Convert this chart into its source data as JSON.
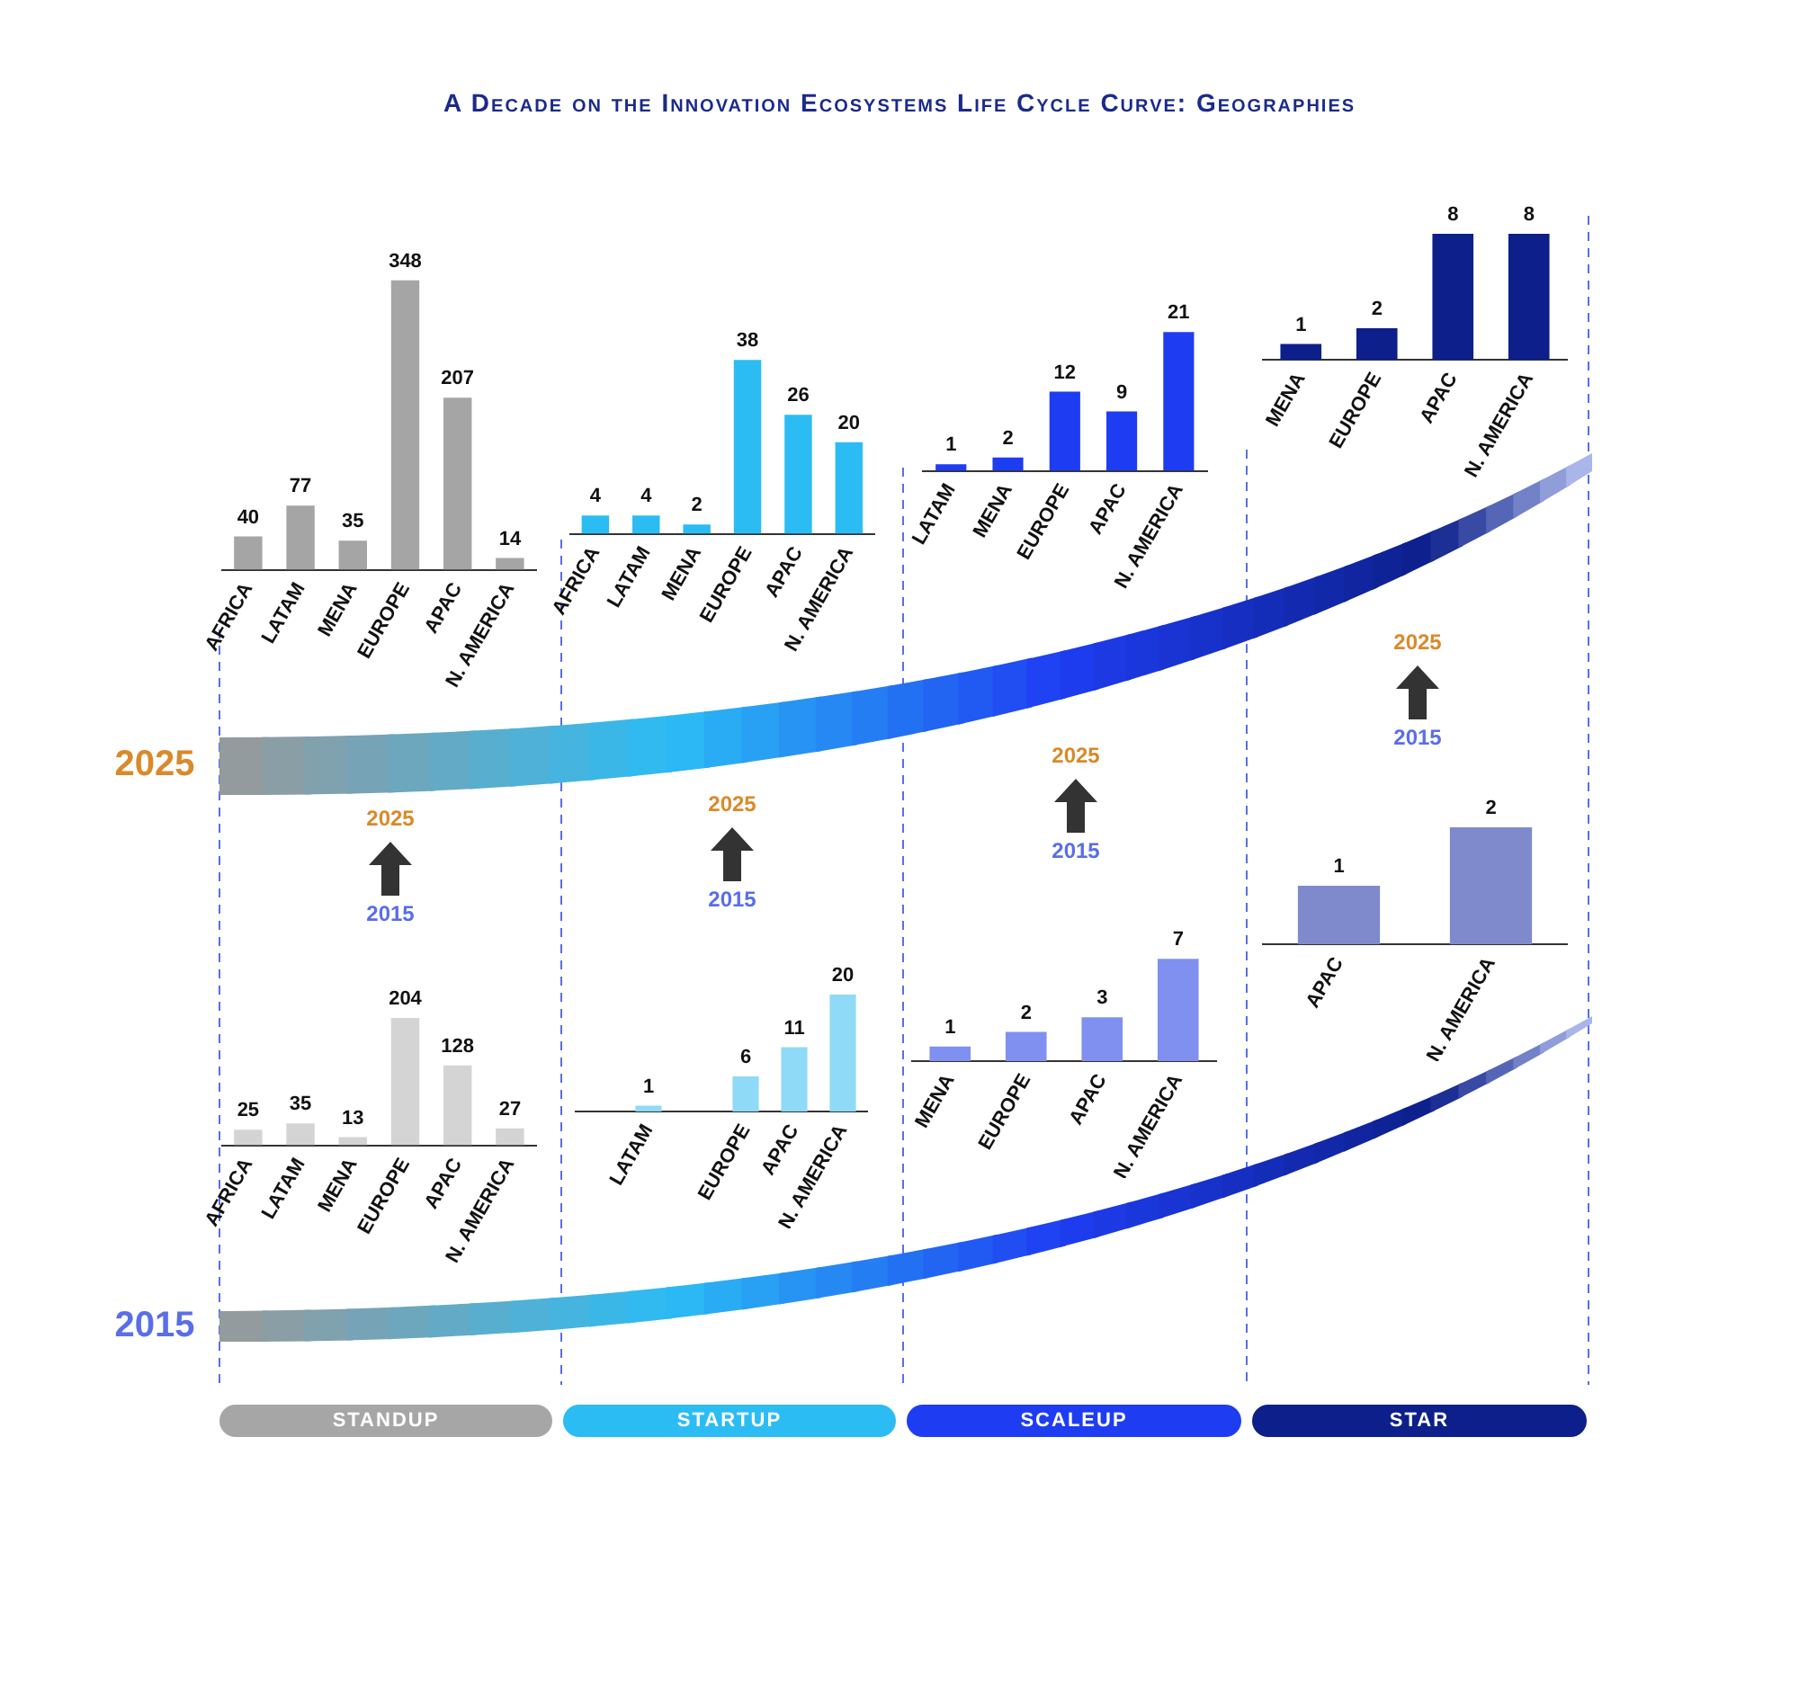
{
  "chart_data": [
    {
      "type": "other",
      "title": "A Decade on the Innovation Ecosystems Life Cycle Curve: Geographies",
      "annotations": [
        "2025",
        "2015",
        "STANDUP",
        "STARTUP",
        "SCALEUP",
        "STAR",
        "2025",
        "2015",
        "2025",
        "2015",
        "2025",
        "2015",
        "2025",
        "2015"
      ]
    },
    {
      "type": "bar",
      "categories": [
        "AFRICA",
        "LATAM",
        "MENA",
        "EUROPE",
        "APAC",
        "N. AMERICA"
      ],
      "values": [
        40,
        77,
        35,
        348,
        207,
        14
      ],
      "color": "#a5a5a5",
      "data_labels": true,
      "tick_labels": "x"
    },
    {
      "type": "bar",
      "categories": [
        "AFRICA",
        "LATAM",
        "MENA",
        "EUROPE",
        "APAC",
        "N. AMERICA"
      ],
      "values": [
        4,
        4,
        2,
        38,
        26,
        20
      ],
      "color": "#2bbcf4",
      "data_labels": true,
      "tick_labels": "x"
    },
    {
      "type": "bar",
      "categories": [
        "LATAM",
        "MENA",
        "EUROPE",
        "APAC",
        "N. AMERICA"
      ],
      "values": [
        1,
        2,
        12,
        9,
        21
      ],
      "color": "#1e3df2",
      "data_labels": true,
      "tick_labels": "x"
    },
    {
      "type": "bar",
      "categories": [
        "MENA",
        "EUROPE",
        "APAC",
        "N. AMERICA"
      ],
      "values": [
        1,
        2,
        8,
        8
      ],
      "color": "#0c1f8a",
      "data_labels": true,
      "tick_labels": "x"
    },
    {
      "type": "bar",
      "categories": [
        "AFRICA",
        "LATAM",
        "MENA",
        "EUROPE",
        "APAC",
        "N. AMERICA"
      ],
      "values": [
        25,
        35,
        13,
        204,
        128,
        27
      ],
      "color": "#d4d4d4",
      "data_labels": true,
      "tick_labels": "x"
    },
    {
      "type": "bar",
      "categories": [
        null,
        "LATAM",
        null,
        "EUROPE",
        "APAC",
        "N. AMERICA"
      ],
      "values": [
        null,
        1,
        null,
        6,
        11,
        20
      ],
      "color": "#8fdaf7",
      "data_labels": true,
      "tick_labels": "x"
    },
    {
      "type": "bar",
      "categories": [
        "MENA",
        "EUROPE",
        "APAC",
        "N. AMERICA"
      ],
      "values": [
        1,
        2,
        3,
        7
      ],
      "color": "#8090f0",
      "data_labels": true,
      "tick_labels": "x"
    },
    {
      "type": "bar",
      "categories": [
        "APAC",
        "N. AMERICA"
      ],
      "values": [
        1,
        2
      ],
      "color": "#7e8acb",
      "data_labels": true,
      "tick_labels": "x"
    }
  ]
}
